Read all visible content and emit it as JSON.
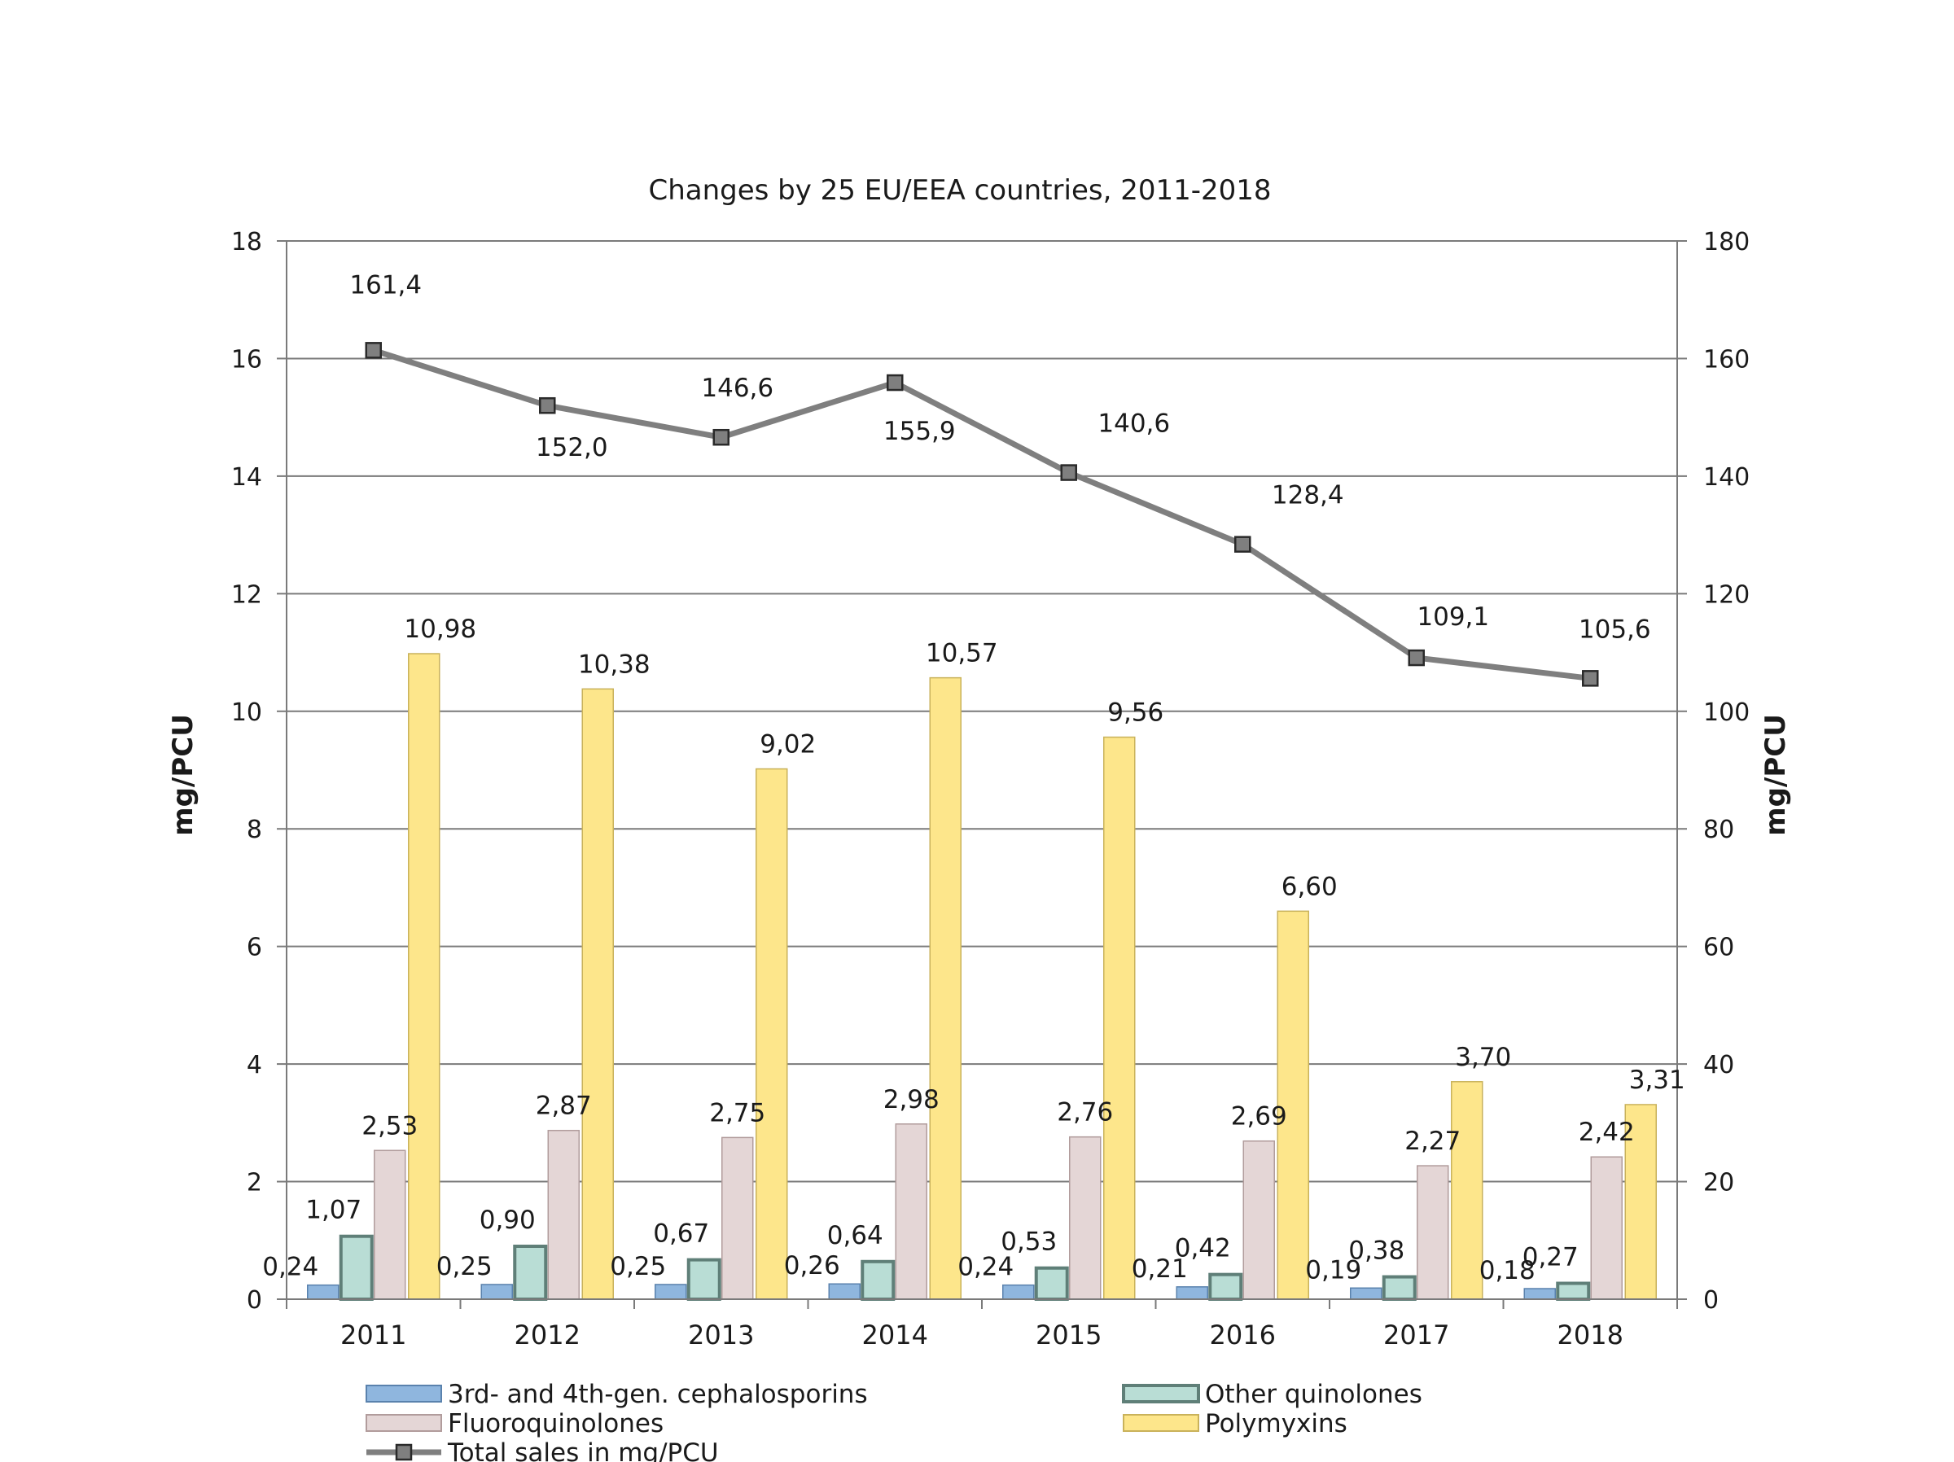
{
  "chart_data": {
    "type": "bar",
    "title": "Changes by 25 EU/EEA countries, 2011-2018",
    "ylabel_left": "mg/PCU",
    "ylabel_right": "mg/PCU",
    "ylim_left": [
      0,
      18
    ],
    "ylim_right": [
      0,
      180
    ],
    "yticks_left": [
      "0",
      "2",
      "4",
      "6",
      "8",
      "10",
      "12",
      "14",
      "16",
      "18"
    ],
    "yticks_right": [
      "0",
      "20",
      "40",
      "60",
      "80",
      "100",
      "120",
      "140",
      "160",
      "180"
    ],
    "grid": true,
    "categories": [
      "2011",
      "2012",
      "2013",
      "2014",
      "2015",
      "2016",
      "2017",
      "2018"
    ],
    "series": [
      {
        "name": "3rd- and 4th-gen. cephalosporins",
        "color": "#8fb6de",
        "values": [
          0.24,
          0.25,
          0.25,
          0.26,
          0.24,
          0.21,
          0.19,
          0.18
        ],
        "labels": [
          "0,24",
          "0,25",
          "0,25",
          "0,26",
          "0,24",
          "0,21",
          "0,19",
          "0,18"
        ]
      },
      {
        "name": "Other quinolones",
        "color": "#b9ddd5",
        "values": [
          1.07,
          0.9,
          0.67,
          0.64,
          0.53,
          0.42,
          0.38,
          0.27
        ],
        "labels": [
          "1,07",
          "0,90",
          "0,67",
          "0,64",
          "0,53",
          "0,42",
          "0,38",
          "0,27"
        ]
      },
      {
        "name": "Fluoroquinolones",
        "color": "#e4d6d6",
        "values": [
          2.53,
          2.87,
          2.75,
          2.98,
          2.76,
          2.69,
          2.27,
          2.42
        ],
        "labels": [
          "2,53",
          "2,87",
          "2,75",
          "2,98",
          "2,76",
          "2,69",
          "2,27",
          "2,42"
        ]
      },
      {
        "name": "Polymyxins",
        "color": "#fde68b",
        "values": [
          10.98,
          10.38,
          9.02,
          10.57,
          9.56,
          6.6,
          3.7,
          3.31
        ],
        "labels": [
          "10,98",
          "10,38",
          "9,02",
          "10,57",
          "9,56",
          "6,60",
          "3,70",
          "3,31"
        ]
      }
    ],
    "line_series": {
      "name": "Total sales in mg/PCU",
      "axis": "right",
      "color": "#7f7f7f",
      "values": [
        161.4,
        152.0,
        146.6,
        155.9,
        140.6,
        128.4,
        109.1,
        105.6
      ],
      "labels": [
        "161,4",
        "152,0",
        "146,6",
        "155,9",
        "140,6",
        "128,4",
        "109,1",
        "105,6"
      ]
    },
    "legend": {
      "placement": "bottom",
      "entries": [
        "3rd- and 4th-gen. cephalosporins",
        "Other quinolones",
        "Fluoroquinolones",
        "Polymyxins",
        "Total sales in mg/PCU"
      ]
    }
  }
}
